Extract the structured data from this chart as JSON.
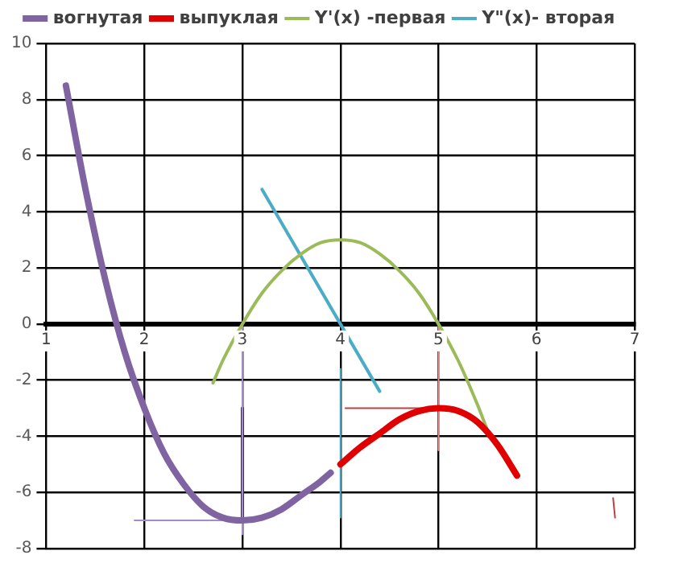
{
  "chart_data": {
    "type": "line",
    "legend": "top",
    "grid": true,
    "marker": "none",
    "line_style": "solid",
    "xlim": [
      1,
      7
    ],
    "xticks": [
      1,
      2,
      3,
      4,
      5,
      6,
      7
    ],
    "ylim": [
      -8,
      10
    ],
    "yticks": [
      -8,
      -6,
      -4,
      -2,
      0,
      2,
      4,
      6,
      8,
      10
    ],
    "series": [
      {
        "name": "вогнутая",
        "color": "#8064a2",
        "x": [
          1.2,
          1.4,
          1.6,
          1.8,
          2.0,
          2.2,
          2.4,
          2.6,
          2.8,
          3.0,
          3.2,
          3.4,
          3.6,
          3.8,
          3.9
        ],
        "values": [
          8.5,
          4.8,
          1.6,
          -1.0,
          -3,
          -4.6,
          -5.7,
          -6.5,
          -6.9,
          -7,
          -6.9,
          -6.6,
          -6.1,
          -5.6,
          -5.3
        ]
      },
      {
        "name": "выпуклая",
        "color": "#e00000",
        "x": [
          4.0,
          4.2,
          4.4,
          4.6,
          4.8,
          5.0,
          5.2,
          5.4,
          5.6,
          5.8
        ],
        "values": [
          -5,
          -4.4,
          -3.9,
          -3.4,
          -3.1,
          -3,
          -3.1,
          -3.5,
          -4.3,
          -5.4
        ]
      },
      {
        "name": "Y'(x) -первая",
        "color": "#9bbb59",
        "x": [
          2.7,
          2.8,
          3.0,
          3.2,
          3.4,
          3.6,
          3.8,
          4.0,
          4.2,
          4.4,
          4.6,
          4.8,
          5.0,
          5.2,
          5.4,
          5.5
        ],
        "values": [
          -2.1,
          -1.3,
          0,
          1.1,
          1.9,
          2.5,
          2.9,
          3,
          2.9,
          2.5,
          1.9,
          1.1,
          0,
          -1.3,
          -2.9,
          -3.8
        ]
      },
      {
        "name": "Y\"(x)- вторая",
        "color": "#4bacc6",
        "x": [
          3.2,
          4.4
        ],
        "values": [
          4.8,
          -2.4
        ]
      },
      {
        "color": "#a58cc8",
        "x": [
          3,
          3
        ],
        "values": [
          0,
          -7.5
        ]
      },
      {
        "color": "#a58cc8",
        "x": [
          1.9,
          3
        ],
        "values": [
          -7,
          -7
        ]
      },
      {
        "color": "#3c2c55",
        "x": [
          3,
          3
        ],
        "values": [
          -3,
          -6.9
        ]
      },
      {
        "color": "#4bacc6",
        "x": [
          4,
          4
        ],
        "values": [
          -1.6,
          -6.9
        ]
      },
      {
        "color": "#e89090",
        "x": [
          5,
          5
        ],
        "values": [
          0,
          -4.5
        ]
      },
      {
        "color": "#c04040",
        "x": [
          4.05,
          5
        ],
        "values": [
          -3,
          -3
        ]
      },
      {
        "color": "#c04040",
        "x": [
          6.78,
          6.8
        ],
        "values": [
          -6.2,
          -6.9
        ]
      }
    ]
  }
}
